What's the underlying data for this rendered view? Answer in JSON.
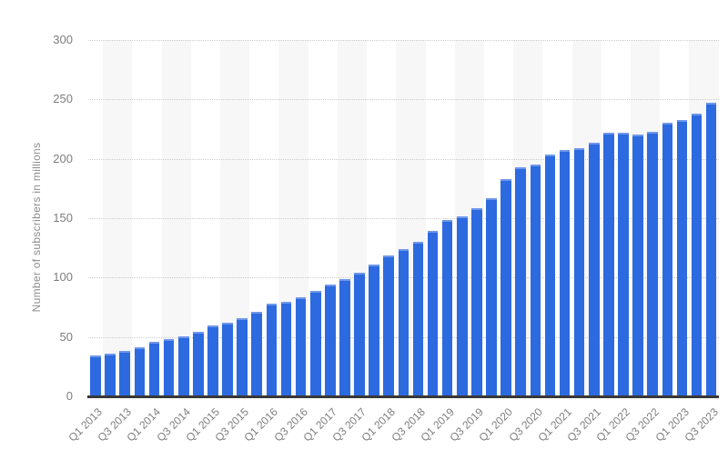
{
  "chart_data": {
    "type": "bar",
    "ylabel": "Number of subscribers in millions",
    "ylim": [
      0,
      300
    ],
    "y_ticks": [
      0,
      50,
      100,
      150,
      200,
      250,
      300
    ],
    "categories": [
      "Q1 2013",
      "Q2 2013",
      "Q3 2013",
      "Q4 2013",
      "Q1 2014",
      "Q2 2014",
      "Q3 2014",
      "Q4 2014",
      "Q1 2015",
      "Q2 2015",
      "Q3 2015",
      "Q4 2015",
      "Q1 2016",
      "Q2 2016",
      "Q3 2016",
      "Q4 2016",
      "Q1 2017",
      "Q2 2017",
      "Q3 2017",
      "Q4 2017",
      "Q1 2018",
      "Q2 2018",
      "Q3 2018",
      "Q4 2018",
      "Q1 2019",
      "Q2 2019",
      "Q3 2019",
      "Q4 2019",
      "Q1 2020",
      "Q2 2020",
      "Q3 2020",
      "Q4 2020",
      "Q1 2021",
      "Q2 2021",
      "Q3 2021",
      "Q4 2021",
      "Q1 2022",
      "Q2 2022",
      "Q3 2022",
      "Q4 2022",
      "Q1 2023",
      "Q2 2023",
      "Q3 2023"
    ],
    "values": [
      34.24,
      35.63,
      38.01,
      41.43,
      46.13,
      47.99,
      50.65,
      54.48,
      59.62,
      62.08,
      66.02,
      70.84,
      77.71,
      79.9,
      83.28,
      89.09,
      94.36,
      99.04,
      104.02,
      110.64,
      118.9,
      124.35,
      130.42,
      139.26,
      148.86,
      151.56,
      158.33,
      167.09,
      182.86,
      192.95,
      195.15,
      203.66,
      207.64,
      209.18,
      213.56,
      221.84,
      221.64,
      220.67,
      223.09,
      230.75,
      232.5,
      238.39,
      247.15
    ],
    "x_tick_labels": [
      "Q1 2013",
      "Q3 2013",
      "Q1 2014",
      "Q3 2014",
      "Q1 2015",
      "Q3 2015",
      "Q1 2016",
      "Q3 2016",
      "Q1 2017",
      "Q3 2017",
      "Q1 2018",
      "Q3 2018",
      "Q1 2019",
      "Q3 2019",
      "Q1 2020",
      "Q3 2020",
      "Q1 2021",
      "Q3 2021",
      "Q1 2022",
      "Q3 2022",
      "Q1 2023",
      "Q3 2023"
    ],
    "x_tick_every": 2,
    "layout": {
      "legend": false,
      "grid": "horizontal-dotted",
      "background_stripes": "alternating-vertical-pairs"
    },
    "colors": {
      "bar": "#2d6ae0",
      "bar_cap": "#6f97ea",
      "grid": "#cccccc",
      "stripe": "#f7f7f8",
      "axis_line": "#383838",
      "tick_text": "#7e7e7e",
      "axis_title_text": "#8e8e8e",
      "background": "#ffffff"
    }
  }
}
